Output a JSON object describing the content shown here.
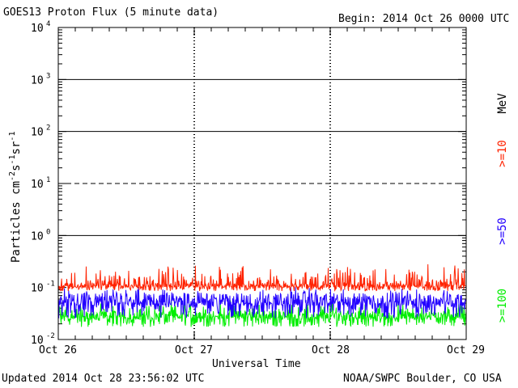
{
  "header": {
    "title": "GOES13 Proton Flux (5 minute data)",
    "begin": "Begin: 2014 Oct 26 0000 UTC"
  },
  "footer": {
    "updated": "Updated 2014 Oct 28 23:56:02 UTC",
    "credit": "NOAA/SWPC Boulder, CO USA"
  },
  "right_labels": {
    "unit": "MeV",
    "ge10": ">=10",
    "ge50": ">=50",
    "ge100": ">=100"
  },
  "colors": {
    "ge10": "#ff2200",
    "ge50": "#2200ff",
    "ge100": "#00ee00",
    "axis": "#000000",
    "background": "#ffffff"
  },
  "chart_data": {
    "type": "line",
    "title": "GOES13 Proton Flux (5 minute data)",
    "xlabel": "Universal Time",
    "ylabel": "Particles cm^-2 s^-1 sr^-1",
    "ylabel_parts": {
      "base": "Particles cm",
      "e1": "-2",
      "m1": "s",
      "e2": "-1",
      "m2": "sr",
      "e3": "-1"
    },
    "yscale": "log",
    "ylim": [
      0.01,
      10000
    ],
    "yticks": [
      {
        "value": 0.01,
        "base": "10",
        "exp": "-2"
      },
      {
        "value": 0.1,
        "base": "10",
        "exp": "-1"
      },
      {
        "value": 1,
        "base": "10",
        "exp": "0"
      },
      {
        "value": 10,
        "base": "10",
        "exp": "1"
      },
      {
        "value": 100,
        "base": "10",
        "exp": "2"
      },
      {
        "value": 1000,
        "base": "10",
        "exp": "3"
      },
      {
        "value": 10000,
        "base": "10",
        "exp": "4"
      }
    ],
    "threshold_lines": [
      {
        "value": 1,
        "style": "solid"
      },
      {
        "value": 10,
        "style": "dashed"
      },
      {
        "value": 100,
        "style": "solid"
      },
      {
        "value": 1000,
        "style": "solid"
      }
    ],
    "xlim": [
      "2014-10-26",
      "2014-10-29"
    ],
    "xticks": [
      "Oct 26",
      "Oct 27",
      "Oct 28",
      "Oct 29"
    ],
    "series": [
      {
        "name": ">=10 MeV",
        "color": "#ff2200",
        "baseline": 0.1,
        "range": [
          0.08,
          0.3
        ]
      },
      {
        "name": ">=50 MeV",
        "color": "#2200ff",
        "baseline": 0.045,
        "range": [
          0.02,
          0.11
        ]
      },
      {
        "name": ">=100 MeV",
        "color": "#00ee00",
        "baseline": 0.025,
        "range": [
          0.015,
          0.06
        ]
      }
    ]
  }
}
